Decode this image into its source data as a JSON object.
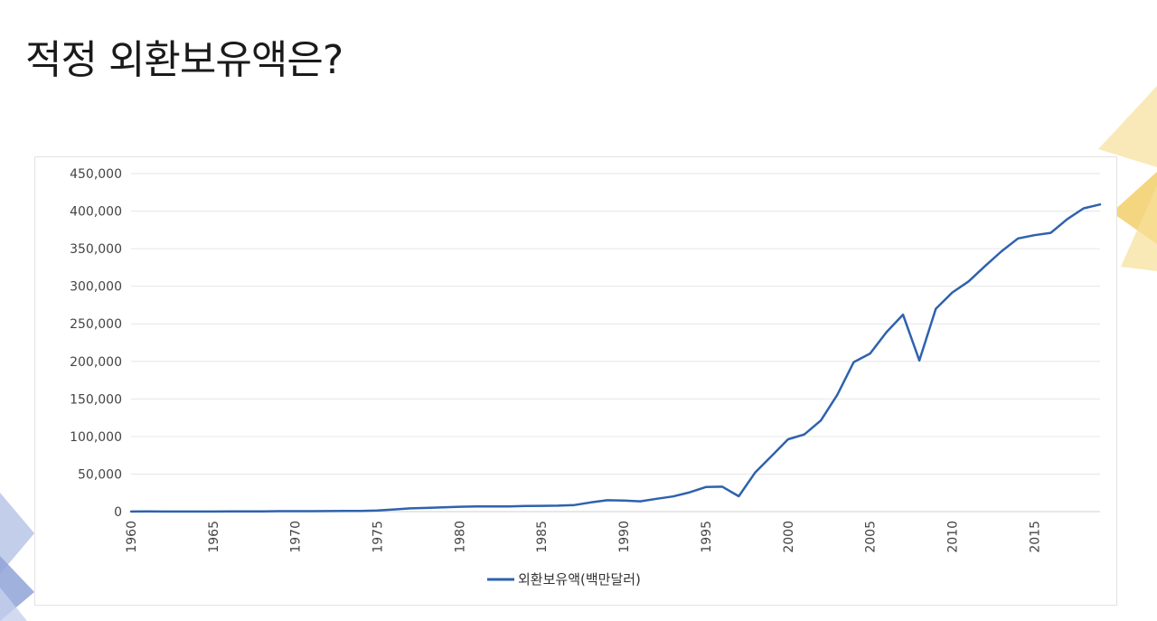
{
  "slide": {
    "title": "적정 외환보유액은?"
  },
  "colors": {
    "line": "#2e62ad",
    "grid": "#e6e6e6",
    "deco_yellow": "#f5d77a",
    "deco_blue": "#8fa3d8"
  },
  "chart_data": {
    "type": "line",
    "title": "",
    "xlabel": "",
    "ylabel": "",
    "ylim": [
      0,
      450000
    ],
    "yticks": [
      0,
      50000,
      100000,
      150000,
      200000,
      250000,
      300000,
      350000,
      400000,
      450000
    ],
    "ytick_labels": [
      "0",
      "50,000",
      "100,000",
      "150,000",
      "200,000",
      "250,000",
      "300,000",
      "350,000",
      "400,000",
      "450,000"
    ],
    "xticks": [
      1960,
      1965,
      1970,
      1975,
      1980,
      1985,
      1990,
      1995,
      2000,
      2005,
      2010,
      2015
    ],
    "xtick_labels": [
      "1960",
      "1965",
      "1970",
      "1975",
      "1980",
      "1985",
      "1990",
      "1995",
      "2000",
      "2005",
      "2010",
      "2015"
    ],
    "xlim": [
      1960,
      2019
    ],
    "grid": true,
    "legend_position": "bottom",
    "series": [
      {
        "name": "외환보유액(백만달러)",
        "x": [
          1960,
          1961,
          1962,
          1963,
          1964,
          1965,
          1966,
          1967,
          1968,
          1969,
          1970,
          1971,
          1972,
          1973,
          1974,
          1975,
          1976,
          1977,
          1978,
          1979,
          1980,
          1981,
          1982,
          1983,
          1984,
          1985,
          1986,
          1987,
          1988,
          1989,
          1990,
          1991,
          1992,
          1993,
          1994,
          1995,
          1996,
          1997,
          1998,
          1999,
          2000,
          2001,
          2002,
          2003,
          2004,
          2005,
          2006,
          2007,
          2008,
          2009,
          2010,
          2011,
          2012,
          2013,
          2014,
          2015,
          2016,
          2017,
          2018,
          2019
        ],
        "values": [
          160,
          200,
          170,
          130,
          130,
          140,
          240,
          350,
          390,
          550,
          610,
          570,
          740,
          1000,
          1000,
          1500,
          2900,
          4300,
          4900,
          5700,
          6500,
          6800,
          6900,
          6900,
          7600,
          7700,
          7900,
          8800,
          12300,
          15200,
          14800,
          13700,
          17100,
          20200,
          25600,
          32700,
          33200,
          20400,
          52000,
          74000,
          96200,
          102800,
          121300,
          155400,
          199000,
          210400,
          238900,
          262200,
          201200,
          270000,
          291600,
          306400,
          326900,
          346500,
          363600,
          368000,
          371100,
          389300,
          403700,
          408800
        ]
      }
    ]
  }
}
